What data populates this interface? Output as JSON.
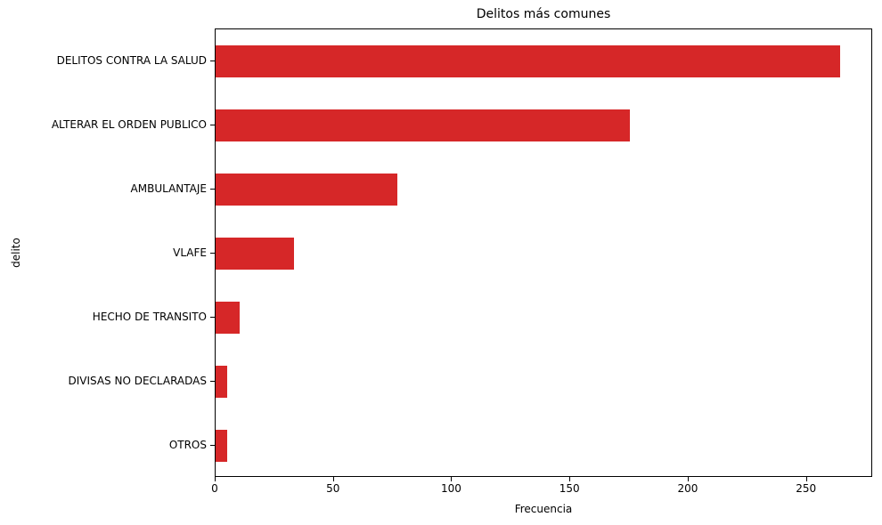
{
  "chart_data": {
    "type": "bar",
    "orientation": "horizontal",
    "title": "Delitos más comunes",
    "xlabel": "Frecuencia",
    "ylabel": "delito",
    "categories": [
      "DELITOS CONTRA LA SALUD",
      "ALTERAR EL ORDEN PUBLICO",
      "AMBULANTAJE",
      "VLAFE",
      "HECHO DE TRANSITO",
      "DIVISAS NO DECLARADAS",
      "OTROS"
    ],
    "values": [
      264,
      175,
      77,
      33,
      10,
      5,
      5
    ],
    "xlim": [
      0,
      278
    ],
    "xticks": [
      "0",
      "50",
      "100",
      "150",
      "200",
      "250"
    ],
    "bar_color": "#d62728",
    "grid": false,
    "legend": null
  }
}
